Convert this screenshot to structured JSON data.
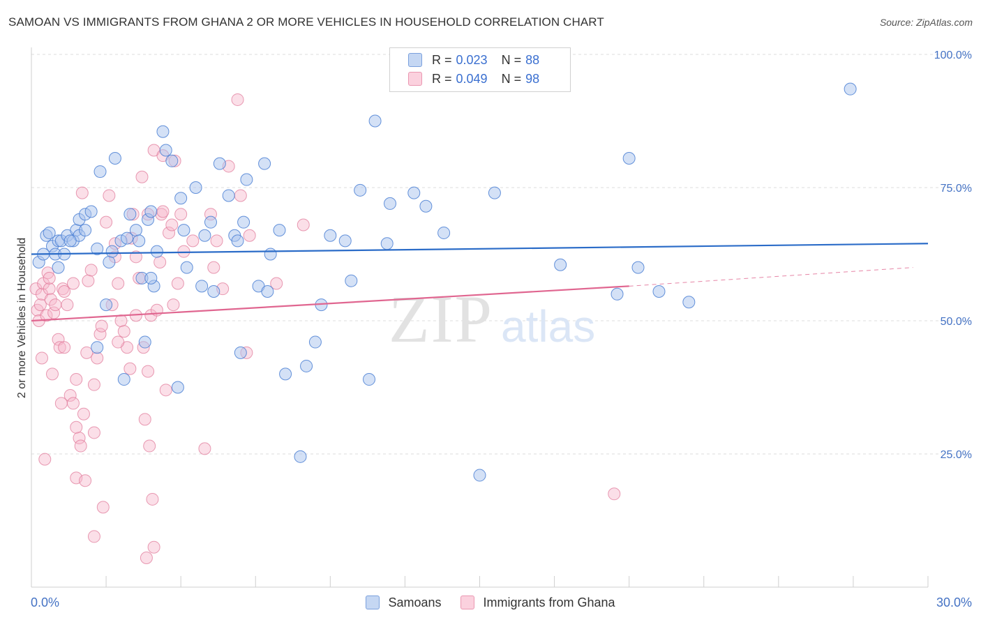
{
  "title": "SAMOAN VS IMMIGRANTS FROM GHANA 2 OR MORE VEHICLES IN HOUSEHOLD CORRELATION CHART",
  "source": "Source: ZipAtlas.com",
  "watermark": {
    "zip": "ZIP",
    "atlas": "atlas"
  },
  "legend": {
    "rows": [
      {
        "r_label": "R =",
        "r_value": "0.023",
        "n_label": "N =",
        "n_value": "88"
      },
      {
        "r_label": "R =",
        "r_value": "0.049",
        "n_label": "N =",
        "n_value": "98"
      }
    ]
  },
  "bottom_legend": {
    "series1": "Samoans",
    "series2": "Immigrants from Ghana"
  },
  "colors": {
    "blue_fill": "#a9c4ee",
    "blue_stroke": "#4a7fd4",
    "blue_line": "#2b6cc8",
    "pink_fill": "#f6b9cb",
    "pink_stroke": "#e07a9a",
    "pink_line": "#e06690",
    "tick_label": "#4472c4",
    "grid": "#dcdcdc"
  },
  "chart_data": {
    "type": "scatter",
    "title": "SAMOAN VS IMMIGRANTS FROM GHANA 2 OR MORE VEHICLES IN HOUSEHOLD CORRELATION CHART",
    "xlabel": "",
    "ylabel": "2 or more Vehicles in Household",
    "xlim": [
      0,
      30
    ],
    "ylim": [
      0,
      100
    ],
    "x_tick_labels": [
      "0.0%",
      "30.0%"
    ],
    "y_ticks": [
      25,
      50,
      75,
      100
    ],
    "y_tick_labels": [
      "25.0%",
      "50.0%",
      "75.0%",
      "100.0%"
    ],
    "grid": true,
    "legend_position": "top-center",
    "series": [
      {
        "name": "Samoans",
        "r": 0.023,
        "n": 88,
        "trend": {
          "x": [
            0,
            30
          ],
          "y": [
            62.5,
            64.5
          ]
        },
        "points": [
          [
            0.25,
            61
          ],
          [
            0.4,
            62.5
          ],
          [
            0.5,
            66
          ],
          [
            0.6,
            66.5
          ],
          [
            0.7,
            64
          ],
          [
            0.8,
            62.5
          ],
          [
            0.9,
            65
          ],
          [
            1.0,
            65
          ],
          [
            1.2,
            66
          ],
          [
            1.4,
            65
          ],
          [
            1.5,
            67
          ],
          [
            1.6,
            66
          ],
          [
            1.6,
            69
          ],
          [
            1.8,
            70
          ],
          [
            2.0,
            70.5
          ],
          [
            2.2,
            63.5
          ],
          [
            2.3,
            78
          ],
          [
            2.5,
            53
          ],
          [
            2.6,
            61
          ],
          [
            2.8,
            80.5
          ],
          [
            3.0,
            65
          ],
          [
            3.1,
            39
          ],
          [
            3.3,
            70
          ],
          [
            3.5,
            67
          ],
          [
            3.6,
            65
          ],
          [
            3.7,
            58
          ],
          [
            3.8,
            46
          ],
          [
            3.9,
            69
          ],
          [
            4.0,
            70.5
          ],
          [
            4.1,
            56.5
          ],
          [
            4.2,
            63
          ],
          [
            4.4,
            85.5
          ],
          [
            4.5,
            82
          ],
          [
            4.7,
            80
          ],
          [
            4.9,
            37.5
          ],
          [
            5.0,
            73
          ],
          [
            5.1,
            67
          ],
          [
            5.2,
            60
          ],
          [
            5.5,
            75
          ],
          [
            5.7,
            56.5
          ],
          [
            6.0,
            68.5
          ],
          [
            6.1,
            55.5
          ],
          [
            6.3,
            79.5
          ],
          [
            6.6,
            73.5
          ],
          [
            6.8,
            66
          ],
          [
            6.9,
            65
          ],
          [
            7.0,
            44
          ],
          [
            7.1,
            68.5
          ],
          [
            7.2,
            76.5
          ],
          [
            7.6,
            56.5
          ],
          [
            7.8,
            79.5
          ],
          [
            7.9,
            55.5
          ],
          [
            8.0,
            62.5
          ],
          [
            8.3,
            67
          ],
          [
            8.5,
            40
          ],
          [
            9.0,
            24.5
          ],
          [
            9.2,
            41.5
          ],
          [
            9.5,
            46
          ],
          [
            9.7,
            53
          ],
          [
            10.0,
            66
          ],
          [
            10.5,
            65
          ],
          [
            10.7,
            57.5
          ],
          [
            11.0,
            74.5
          ],
          [
            11.3,
            39
          ],
          [
            11.5,
            87.5
          ],
          [
            11.9,
            64.5
          ],
          [
            12.0,
            72
          ],
          [
            12.8,
            74
          ],
          [
            13.2,
            71.5
          ],
          [
            13.8,
            66.5
          ],
          [
            15.0,
            21
          ],
          [
            15.5,
            74
          ],
          [
            17.7,
            60.5
          ],
          [
            19.6,
            55
          ],
          [
            20.0,
            80.5
          ],
          [
            20.3,
            60
          ],
          [
            21.0,
            55.5
          ],
          [
            22.0,
            53.5
          ],
          [
            27.4,
            93.5
          ],
          [
            1.3,
            65
          ],
          [
            1.8,
            67
          ],
          [
            2.2,
            45
          ],
          [
            3.2,
            65.5
          ],
          [
            4.0,
            58
          ],
          [
            5.8,
            66
          ],
          [
            2.7,
            63
          ],
          [
            0.9,
            60
          ],
          [
            1.1,
            62.5
          ]
        ]
      },
      {
        "name": "Immigrants from Ghana",
        "r": 0.049,
        "n": 98,
        "trend": {
          "x": [
            0,
            20
          ],
          "y": [
            50,
            56.5
          ]
        },
        "trend_dashed": {
          "x": [
            20,
            29.5
          ],
          "y": [
            56.5,
            60
          ]
        },
        "points": [
          [
            0.15,
            56
          ],
          [
            0.2,
            52
          ],
          [
            0.25,
            50
          ],
          [
            0.3,
            53
          ],
          [
            0.35,
            55
          ],
          [
            0.4,
            57
          ],
          [
            0.45,
            24
          ],
          [
            0.5,
            51
          ],
          [
            0.55,
            59
          ],
          [
            0.6,
            56
          ],
          [
            0.65,
            54
          ],
          [
            0.7,
            40
          ],
          [
            0.75,
            51.5
          ],
          [
            0.8,
            53
          ],
          [
            0.9,
            46.5
          ],
          [
            0.95,
            45
          ],
          [
            1.0,
            34.5
          ],
          [
            1.05,
            56
          ],
          [
            1.1,
            55.5
          ],
          [
            1.2,
            53
          ],
          [
            1.3,
            36
          ],
          [
            1.4,
            34.5
          ],
          [
            1.4,
            57
          ],
          [
            1.5,
            20.5
          ],
          [
            1.5,
            39
          ],
          [
            1.6,
            28
          ],
          [
            1.65,
            26.5
          ],
          [
            1.7,
            74
          ],
          [
            1.75,
            32.5
          ],
          [
            1.8,
            20
          ],
          [
            1.85,
            44
          ],
          [
            1.9,
            57.5
          ],
          [
            2.0,
            59.5
          ],
          [
            2.1,
            38
          ],
          [
            2.1,
            29
          ],
          [
            2.2,
            43
          ],
          [
            2.3,
            47.5
          ],
          [
            2.35,
            49
          ],
          [
            2.4,
            15
          ],
          [
            2.5,
            68.5
          ],
          [
            2.6,
            73.5
          ],
          [
            2.7,
            53
          ],
          [
            2.8,
            64.5
          ],
          [
            2.9,
            57
          ],
          [
            3.0,
            50
          ],
          [
            3.1,
            48
          ],
          [
            3.2,
            45
          ],
          [
            3.3,
            41
          ],
          [
            3.35,
            65.5
          ],
          [
            3.4,
            70
          ],
          [
            3.5,
            62
          ],
          [
            3.6,
            58
          ],
          [
            3.7,
            77
          ],
          [
            3.75,
            45
          ],
          [
            3.8,
            31.5
          ],
          [
            3.85,
            5.5
          ],
          [
            3.9,
            40.5
          ],
          [
            3.95,
            26.5
          ],
          [
            4.0,
            51
          ],
          [
            4.05,
            16.5
          ],
          [
            4.1,
            82
          ],
          [
            4.2,
            52
          ],
          [
            4.3,
            61
          ],
          [
            4.35,
            70
          ],
          [
            4.4,
            81
          ],
          [
            4.5,
            37
          ],
          [
            4.6,
            66.5
          ],
          [
            4.7,
            68
          ],
          [
            4.75,
            53
          ],
          [
            4.8,
            80
          ],
          [
            4.9,
            57
          ],
          [
            5.0,
            70
          ],
          [
            5.1,
            63
          ],
          [
            5.4,
            65
          ],
          [
            5.8,
            26
          ],
          [
            6.0,
            70
          ],
          [
            6.1,
            60
          ],
          [
            6.2,
            65
          ],
          [
            6.4,
            56
          ],
          [
            6.6,
            79
          ],
          [
            6.9,
            91.5
          ],
          [
            7.0,
            73.5
          ],
          [
            7.2,
            44
          ],
          [
            7.3,
            66
          ],
          [
            8.2,
            57
          ],
          [
            9.1,
            68
          ],
          [
            19.5,
            17.5
          ],
          [
            2.1,
            9.5
          ],
          [
            4.1,
            7.5
          ],
          [
            1.5,
            30
          ],
          [
            0.35,
            43
          ],
          [
            2.8,
            62
          ],
          [
            3.9,
            70
          ],
          [
            0.6,
            58
          ],
          [
            1.1,
            45
          ],
          [
            4.4,
            70.5
          ],
          [
            2.9,
            46
          ],
          [
            3.5,
            51
          ]
        ]
      }
    ]
  }
}
